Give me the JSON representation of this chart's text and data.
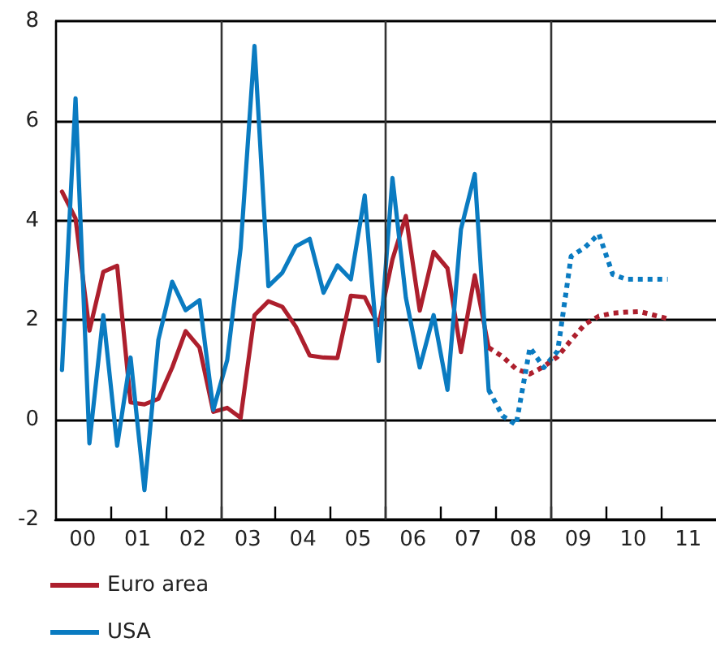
{
  "chart_data": {
    "type": "line",
    "xlim": [
      "2000",
      "2012"
    ],
    "xticks": [
      {
        "value": "2000-07-01",
        "label": "00"
      },
      {
        "value": "2001-07-01",
        "label": "01"
      },
      {
        "value": "2002-07-01",
        "label": "02"
      },
      {
        "value": "2003-07-01",
        "label": "03"
      },
      {
        "value": "2004-07-01",
        "label": "04"
      },
      {
        "value": "2005-07-01",
        "label": "05"
      },
      {
        "value": "2006-07-01",
        "label": "06"
      },
      {
        "value": "2007-07-01",
        "label": "07"
      },
      {
        "value": "2008-07-01",
        "label": "08"
      },
      {
        "value": "2009-07-01",
        "label": "09"
      },
      {
        "value": "2010-07-01",
        "label": "10"
      },
      {
        "value": "2011-07-01",
        "label": "11"
      },
      {
        "value": "2001",
        "label": null
      },
      {
        "value": "2002",
        "label": null
      },
      {
        "value": "2003",
        "label": null
      },
      {
        "value": "2004",
        "label": null
      },
      {
        "value": "2005",
        "label": null
      },
      {
        "value": "2006",
        "label": null
      },
      {
        "value": "2007",
        "label": null
      },
      {
        "value": "2008",
        "label": null
      },
      {
        "value": "2009",
        "label": null
      },
      {
        "value": "2010",
        "label": null
      },
      {
        "value": "2011",
        "label": null
      }
    ],
    "ylim": [
      -2,
      8
    ],
    "yticks": [
      -2,
      0,
      2,
      4,
      6,
      8
    ],
    "grid": "y",
    "marker": "none",
    "legend": "bottom left",
    "ref_lines": [
      {
        "axis": "x",
        "value": "2003",
        "color": "#333333"
      },
      {
        "axis": "x",
        "value": "2006",
        "color": "#333333"
      },
      {
        "axis": "x",
        "value": "2009",
        "color": "#333333"
      }
    ],
    "series": [
      {
        "color": "#ad1f2d",
        "line_style": "solid",
        "x": [
          "2000-02-15",
          "2000-05-15",
          "2000-08-15",
          "2000-11-15",
          "2001-02-15",
          "2001-05-15",
          "2001-08-15",
          "2001-11-15",
          "2002-02-15",
          "2002-05-15",
          "2002-08-15",
          "2002-11-15",
          "2003-02-15",
          "2003-05-15",
          "2003-08-15",
          "2003-11-15",
          "2004-02-15",
          "2004-05-15",
          "2004-08-15",
          "2004-11-15",
          "2005-02-15",
          "2005-05-15",
          "2005-08-15",
          "2005-11-15",
          "2006-02-15",
          "2006-05-15",
          "2006-08-15",
          "2006-11-15",
          "2007-02-15",
          "2007-05-15",
          "2007-08-15",
          "2007-11-15"
        ],
        "values": [
          4.58,
          4.04,
          1.79,
          2.97,
          3.09,
          0.35,
          0.31,
          0.42,
          1.05,
          1.78,
          1.45,
          0.16,
          0.24,
          0.04,
          2.1,
          2.38,
          2.27,
          1.87,
          1.29,
          1.25,
          1.24,
          2.49,
          2.46,
          1.9,
          3.22,
          4.09,
          2.19,
          3.37,
          3.04,
          1.36,
          2.9,
          1.45
        ]
      },
      {
        "color": "#0a7bc1",
        "line_style": "solid",
        "x": [
          "2000-02-15",
          "2000-05-15",
          "2000-08-15",
          "2000-11-15",
          "2001-02-15",
          "2001-05-15",
          "2001-08-15",
          "2001-11-15",
          "2002-02-15",
          "2002-05-15",
          "2002-08-15",
          "2002-11-15",
          "2003-02-15",
          "2003-05-15",
          "2003-08-15",
          "2003-11-15",
          "2004-02-15",
          "2004-05-15",
          "2004-08-15",
          "2004-11-15",
          "2005-02-15",
          "2005-05-15",
          "2005-08-15",
          "2005-11-15",
          "2006-02-15",
          "2006-05-15",
          "2006-08-15",
          "2006-11-15",
          "2007-02-15",
          "2007-05-15",
          "2007-08-15",
          "2007-11-15"
        ],
        "values": [
          1.0,
          6.45,
          -0.47,
          2.1,
          -0.52,
          1.25,
          -1.41,
          1.6,
          2.77,
          2.2,
          2.4,
          0.2,
          1.2,
          3.45,
          7.5,
          2.68,
          2.95,
          3.48,
          3.63,
          2.55,
          3.1,
          2.82,
          4.5,
          1.18,
          4.85,
          2.45,
          1.05,
          2.1,
          0.6,
          3.82,
          4.93,
          0.6
        ]
      },
      {
        "name": "Euro area",
        "color": "#ad1f2d",
        "line_style": "dotted",
        "x": [
          "2007-11-15",
          "2008-02-15",
          "2008-05-15",
          "2008-08-15",
          "2008-11-15",
          "2009-02-15",
          "2009-05-15",
          "2009-08-15",
          "2009-11-15",
          "2010-02-15",
          "2010-05-15",
          "2010-08-15",
          "2010-11-15",
          "2011-02-15"
        ],
        "values": [
          1.45,
          1.27,
          1.02,
          0.92,
          1.07,
          1.27,
          1.6,
          1.92,
          2.08,
          2.14,
          2.16,
          2.17,
          2.1,
          2.03
        ]
      },
      {
        "name": "USA",
        "color": "#0a7bc1",
        "line_style": "dotted",
        "x": [
          "2007-11-15",
          "2008-02-15",
          "2008-05-15",
          "2008-08-15",
          "2008-11-15",
          "2009-02-15",
          "2009-05-15",
          "2009-08-15",
          "2009-11-15",
          "2010-02-15",
          "2010-05-15",
          "2010-08-15",
          "2010-11-15",
          "2011-02-15"
        ],
        "values": [
          0.6,
          0.08,
          -0.1,
          1.45,
          1.05,
          1.38,
          3.28,
          3.46,
          3.73,
          2.92,
          2.82,
          2.82,
          2.82,
          2.82
        ]
      }
    ]
  }
}
